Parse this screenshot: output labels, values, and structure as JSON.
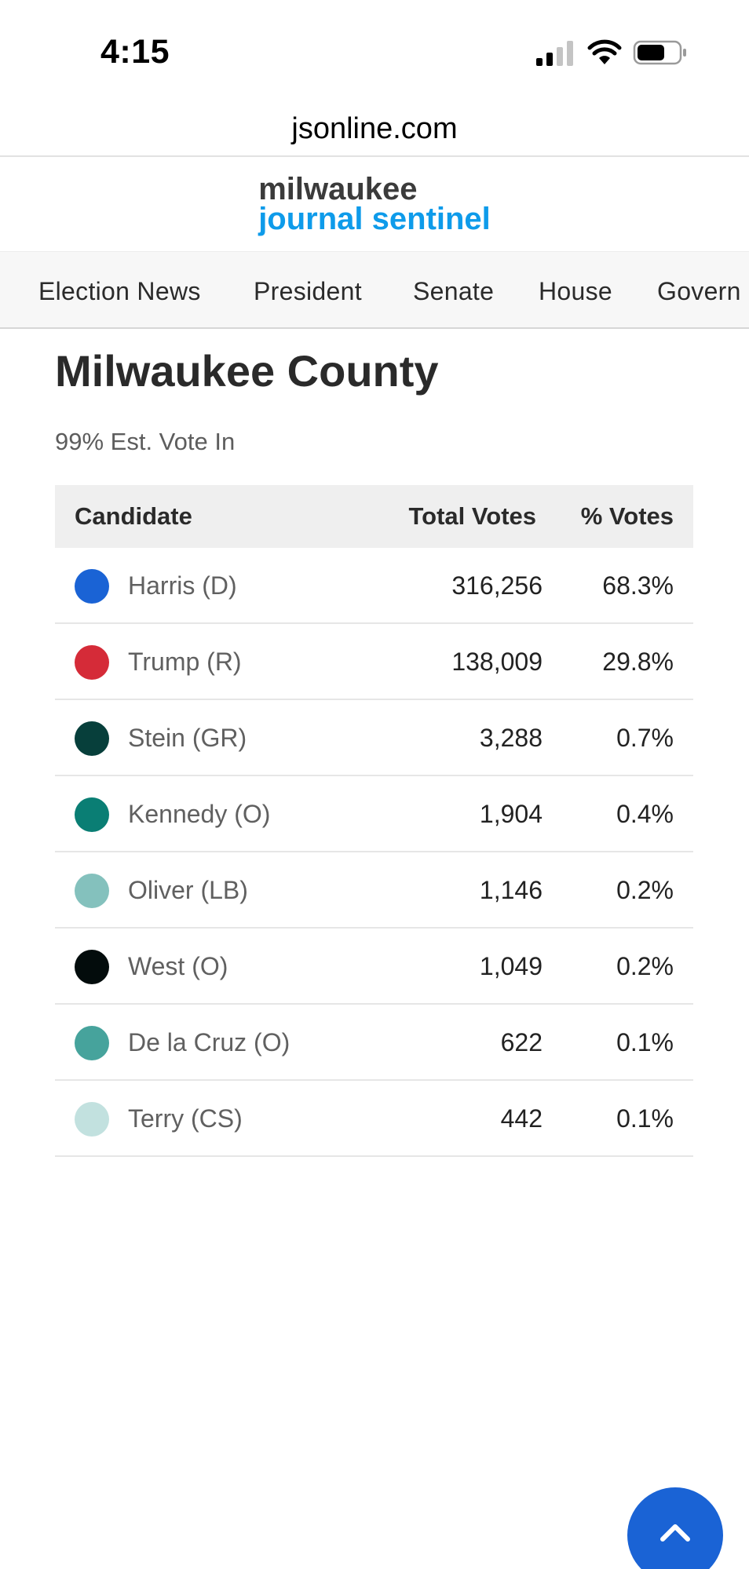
{
  "status_bar": {
    "time": "4:15",
    "icons": [
      "signal-icon",
      "wifi-icon",
      "battery-icon"
    ]
  },
  "browser": {
    "url": "jsonline.com"
  },
  "masthead": {
    "logo_line1": "milwaukee",
    "logo_line2": "journal sentinel",
    "colors": {
      "line1": "#3b3b3b",
      "line2": "#0e9bea"
    }
  },
  "nav": {
    "items": [
      {
        "label": "Election News"
      },
      {
        "label": "President"
      },
      {
        "label": "Senate"
      },
      {
        "label": "House"
      },
      {
        "label": "Govern"
      }
    ]
  },
  "main": {
    "title": "Milwaukee County",
    "subtitle": "99% Est. Vote In",
    "table": {
      "headers": {
        "candidate": "Candidate",
        "total": "Total Votes",
        "pct": "% Votes"
      },
      "rows": [
        {
          "name": "Harris (D)",
          "votes": "316,256",
          "pct": "68.3%",
          "color": "#1a63d5"
        },
        {
          "name": "Trump (R)",
          "votes": "138,009",
          "pct": "29.8%",
          "color": "#d52b38"
        },
        {
          "name": "Stein (GR)",
          "votes": "3,288",
          "pct": "0.7%",
          "color": "#073f3b"
        },
        {
          "name": "Kennedy (O)",
          "votes": "1,904",
          "pct": "0.4%",
          "color": "#0a7e74"
        },
        {
          "name": "Oliver (LB)",
          "votes": "1,146",
          "pct": "0.2%",
          "color": "#84c1bd"
        },
        {
          "name": "West (O)",
          "votes": "1,049",
          "pct": "0.2%",
          "color": "#030c0c"
        },
        {
          "name": "De la Cruz (O)",
          "votes": "622",
          "pct": "0.1%",
          "color": "#46a39c"
        },
        {
          "name": "Terry (CS)",
          "votes": "442",
          "pct": "0.1%",
          "color": "#c2e1df"
        }
      ]
    }
  },
  "scroll_top": {
    "icon": "chevron-up-icon",
    "color": "#1a63d5"
  }
}
